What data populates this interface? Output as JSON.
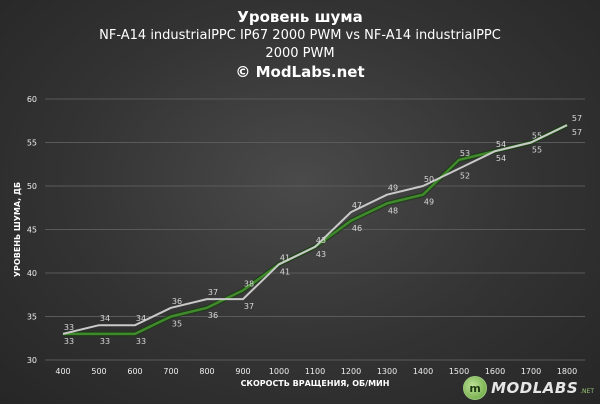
{
  "header": {
    "title": "Уровень шума",
    "subtitle_line1": "NF-A14 industrialPPC  IP67 2000 PWM vs NF-A14 industrialPPC",
    "subtitle_line2": "2000 PWM",
    "copyright": "© ModLabs.net"
  },
  "logo": {
    "badge": "m",
    "text": "MODLABS",
    "sup": ".NET"
  },
  "colors": {
    "series1": "#3f8a2a",
    "series1_halo": "#1a3a12",
    "series2": "#c9c9c9",
    "grid": "#5a5a5a",
    "text": "#ffffff"
  },
  "chart_data": {
    "type": "line",
    "xlabel": "СКОРОСТЬ ВРАЩЕНИЯ, ОБ/МИН",
    "ylabel": "УРОВЕНЬ ШУМА, ДБ",
    "ylim": [
      30,
      60
    ],
    "yticks": [
      30,
      35,
      40,
      45,
      50,
      55,
      60
    ],
    "grid": true,
    "categories": [
      400,
      500,
      600,
      700,
      800,
      900,
      1000,
      1100,
      1200,
      1300,
      1400,
      1500,
      1600,
      1700,
      1800
    ],
    "series": [
      {
        "values": [
          33,
          33,
          33,
          35,
          36,
          38,
          41,
          43,
          46,
          48,
          49,
          53,
          54,
          55,
          57
        ]
      },
      {
        "values": [
          33,
          34,
          34,
          36,
          37,
          37,
          41,
          43,
          47,
          49,
          50,
          52,
          54,
          55,
          57
        ]
      }
    ]
  }
}
